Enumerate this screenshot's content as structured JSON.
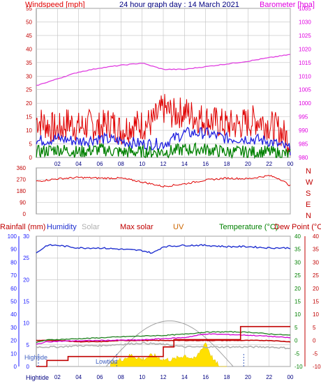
{
  "header": {
    "wind_label": "Windspeed [mph]",
    "title": "24 hour graph day : 14 March 2021",
    "baro_label": "Barometer [hpa]"
  },
  "legend": {
    "rainfall": "Rainfall (mm)",
    "humidity": "Humidity",
    "solar": "Solar",
    "max_solar": "Max solar",
    "uv": "UV",
    "temperature": "Temperature (°C)",
    "dew_point": "Dew Point (°C)"
  },
  "colors": {
    "windspeed": "#e00000",
    "wind_avg": "#2020e0",
    "wind_low": "#008000",
    "barometer": "#e040e0",
    "direction": "#e00000",
    "humidity": "#2030d0",
    "rainfall": "#c00000",
    "solar": "#b0b0b0",
    "uv": "#ffe000",
    "temperature": "#208020",
    "dew_point": "#d000d0",
    "axis_left": "#1a1aff",
    "axis_red": "#c00000",
    "axis_green": "#008000",
    "axis_magenta": "#e000e0",
    "axis_orange": "#cc6600",
    "grid": "#c0c0c0"
  },
  "chart_data": [
    {
      "type": "line",
      "name": "wind-and-pressure",
      "x_ticks": [
        "02",
        "04",
        "06",
        "08",
        "10",
        "12",
        "14",
        "16",
        "18",
        "20",
        "22",
        "00"
      ],
      "y_left_ticks": [
        "0",
        "5",
        "10",
        "15",
        "20",
        "25",
        "30",
        "35",
        "40",
        "45",
        "50",
        "55"
      ],
      "y_left_range": [
        0,
        55
      ],
      "y_right_ticks": [
        "980",
        "985",
        "990",
        "995",
        "1000",
        "1005",
        "1010",
        "1015",
        "1020",
        "1025",
        "1030",
        "1035"
      ],
      "y_right_range": [
        980,
        1035
      ],
      "grid": true,
      "series": [
        {
          "name": "Windspeed [mph]",
          "x": [
            0,
            1,
            2,
            3,
            4,
            5,
            6,
            7,
            8,
            9,
            10,
            11,
            12,
            13,
            14,
            15,
            16,
            17,
            18,
            19,
            20,
            21,
            22,
            23,
            24
          ],
          "values": [
            14,
            12,
            10,
            13,
            11,
            12,
            11,
            13,
            10,
            12,
            12,
            13,
            18,
            16,
            17,
            15,
            14,
            13,
            12,
            12,
            13,
            14,
            12,
            10,
            6
          ]
        },
        {
          "x": [
            0,
            2,
            4,
            6,
            8,
            10,
            12,
            14,
            16,
            18,
            20,
            22,
            24
          ],
          "values": [
            6,
            7,
            6,
            7,
            6,
            5,
            5,
            9,
            9,
            7,
            7,
            6,
            3
          ]
        },
        {
          "x": [
            0,
            2,
            4,
            6,
            8,
            10,
            12,
            14,
            16,
            18,
            20,
            22,
            24
          ],
          "values": [
            2,
            3,
            2,
            3,
            2,
            2,
            2,
            3,
            3,
            2,
            2,
            2,
            1
          ]
        },
        {
          "name": "Barometer [hpa]",
          "x": [
            0,
            2,
            4,
            6,
            8,
            10,
            12,
            14,
            16,
            18,
            20,
            22,
            24
          ],
          "values": [
            1006.5,
            1009,
            1011.5,
            1013,
            1014,
            1014.8,
            1012.5,
            1012.5,
            1013.5,
            1014.5,
            1015.5,
            1016.8,
            1018
          ]
        }
      ]
    },
    {
      "type": "line",
      "name": "wind-direction",
      "y_ticks": [
        "0",
        "90",
        "180",
        "270",
        "360"
      ],
      "y_range": [
        0,
        360
      ],
      "y_right_labels": [
        "N",
        "W",
        "S",
        "E",
        "N"
      ],
      "series": [
        {
          "x": [
            0,
            2,
            4,
            6,
            8,
            10,
            12,
            14,
            16,
            18,
            20,
            22,
            23,
            24
          ],
          "values": [
            255,
            275,
            285,
            280,
            280,
            250,
            215,
            235,
            265,
            280,
            275,
            300,
            275,
            220
          ]
        }
      ]
    },
    {
      "type": "line",
      "name": "temperature-humidity-rain-solar",
      "y_ticks_humidity": [
        "0",
        "10",
        "20",
        "30",
        "40",
        "50",
        "60",
        "70",
        "80",
        "90",
        "100"
      ],
      "y_range_humidity": [
        0,
        100
      ],
      "y_ticks_rain": [
        "0",
        "5",
        "10",
        "15",
        "20",
        "25",
        "30"
      ],
      "y_range_rain": [
        0,
        30
      ],
      "y_ticks_temp": [
        "-10",
        "-5",
        "0",
        "5",
        "10",
        "15",
        "20",
        "25",
        "30",
        "35",
        "40"
      ],
      "y_range_temp": [
        -10,
        40
      ],
      "tide_labels": [
        "Hightide",
        "Lowtide",
        "Hightide"
      ],
      "series": [
        {
          "name": "Humidity",
          "x": [
            0,
            1,
            2,
            4,
            6,
            8,
            10,
            11,
            12,
            14,
            16,
            18,
            20,
            22,
            24
          ],
          "values": [
            87,
            93,
            93,
            91,
            91,
            90,
            89,
            87,
            92,
            93,
            93,
            92,
            92,
            91,
            91
          ]
        },
        {
          "name": "Rainfall (mm)",
          "x": [
            0,
            1,
            3,
            6,
            8,
            10,
            11,
            12,
            13,
            17,
            19,
            19.3,
            21,
            24
          ],
          "values": [
            0,
            1.4,
            2.3,
            2.3,
            2.3,
            2.3,
            2.3,
            4.5,
            6.2,
            6.2,
            6.2,
            9.2,
            9.2,
            9.2
          ]
        },
        {
          "name": "Temperature (°C)",
          "x": [
            0,
            1,
            3,
            6,
            8,
            10,
            12,
            14,
            16,
            18,
            20,
            22,
            24
          ],
          "values": [
            -0.8,
            0.2,
            0.5,
            1,
            1.4,
            1.7,
            1.9,
            2.4,
            3.2,
            3.3,
            3.2,
            2.5,
            2
          ]
        },
        {
          "name": "Dew Point (°C)",
          "x": [
            0,
            1,
            3,
            6,
            8,
            10,
            12,
            14,
            16,
            18,
            20,
            22,
            24
          ],
          "values": [
            -1.5,
            -0.5,
            -0.2,
            0,
            0.1,
            0.2,
            0.7,
            1.1,
            2.5,
            2.3,
            2,
            1.6,
            1
          ]
        },
        {
          "name": "Solar",
          "x": [
            0,
            2,
            4,
            6,
            8,
            10,
            12,
            14,
            16,
            18,
            20,
            22,
            24
          ],
          "values": [
            15,
            15,
            16,
            16,
            17,
            18,
            17,
            15,
            15,
            15,
            15,
            15,
            14
          ]
        },
        {
          "name": "Max solar",
          "x": [
            0,
            2,
            4,
            6,
            8,
            10,
            12,
            14,
            16,
            18,
            20,
            22,
            24
          ],
          "values": [
            20,
            20,
            19,
            19,
            20,
            20,
            20,
            20,
            20,
            20,
            20,
            20,
            19
          ]
        },
        {
          "name": "UV",
          "x": [
            7,
            8,
            9,
            10,
            11,
            12,
            13,
            14,
            15,
            16,
            16.5,
            17,
            18
          ],
          "values": [
            0,
            1,
            2,
            1,
            2,
            1,
            1,
            2,
            1,
            5,
            2,
            0,
            0
          ]
        }
      ]
    }
  ]
}
